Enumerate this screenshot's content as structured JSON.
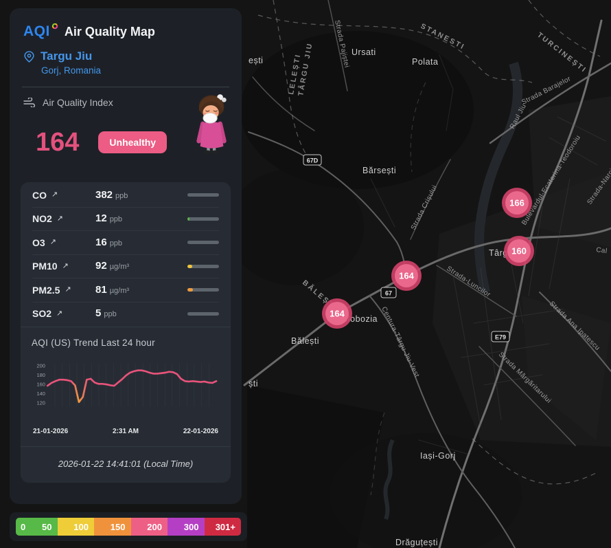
{
  "panel": {
    "logo_text": "AQI",
    "title": "Air Quality Map",
    "location": {
      "city": "Targu Jiu",
      "region": "Gorj, Romania"
    },
    "aqi_section_label": "Air Quality Index",
    "aqi_value": "164",
    "aqi_status": "Unhealthy",
    "trend_arrow": "↗",
    "pollutants": [
      {
        "name": "CO",
        "value": "382",
        "unit": "ppb",
        "fill_pct": 0,
        "fill_color": "#5d646c"
      },
      {
        "name": "NO2",
        "value": "12",
        "unit": "ppb",
        "fill_pct": 7,
        "fill_color": "#57b947"
      },
      {
        "name": "O3",
        "value": "16",
        "unit": "ppb",
        "fill_pct": 0,
        "fill_color": "#5d646c"
      },
      {
        "name": "PM10",
        "value": "92",
        "unit": "µg/m³",
        "fill_pct": 16,
        "fill_color": "#eec43d"
      },
      {
        "name": "PM2.5",
        "value": "81",
        "unit": "µg/m³",
        "fill_pct": 18,
        "fill_color": "#ef9a3d"
      },
      {
        "name": "SO2",
        "value": "5",
        "unit": "ppb",
        "fill_pct": 0,
        "fill_color": "#5d646c"
      }
    ],
    "timestamp": "2026-01-22 14:41:01 (Local Time)"
  },
  "chart_data": {
    "type": "line",
    "title": "AQI (US) Trend Last 24 hour",
    "x_labels": [
      "21-01-2026",
      "2:31 AM",
      "22-01-2026"
    ],
    "yticks": [
      200,
      180,
      160,
      140,
      120
    ],
    "ylim": [
      112,
      205
    ],
    "values": [
      157,
      163,
      167,
      170,
      170,
      169,
      167,
      158,
      122,
      133,
      170,
      172,
      164,
      161,
      161,
      160,
      158,
      157,
      164,
      171,
      179,
      185,
      188,
      190,
      190,
      188,
      185,
      183,
      183,
      184,
      185,
      187,
      186,
      182,
      172,
      167,
      166,
      167,
      166,
      165,
      166,
      164,
      163,
      167
    ],
    "line_color": "#e8537a",
    "dip_color": "#f09a3e",
    "grid": "vertical"
  },
  "legend": {
    "segments": [
      {
        "color": "#57b947",
        "left_label": "0",
        "label": "50"
      },
      {
        "color": "#eecd39",
        "label": "100"
      },
      {
        "color": "#f0923c",
        "label": "150"
      },
      {
        "color": "#ee5f86",
        "label": "200"
      },
      {
        "color": "#b43fc4",
        "label": "300"
      },
      {
        "color": "#ce2b42",
        "label": "301+"
      }
    ]
  },
  "map": {
    "markers": [
      {
        "value": "166"
      },
      {
        "value": "160"
      },
      {
        "value": "164"
      },
      {
        "value": "164"
      }
    ],
    "places": {
      "ursati": "Ursati",
      "polata": "Polata",
      "barsesti": "Bărsești",
      "slobozia": "Slobozia",
      "balesti": "Bălești",
      "targu_jiu": "Târgu Jiu",
      "iasi_gorj": "Iași-Gorj",
      "dragutesti": "Drăguțești",
      "edge_esti": "ești",
      "edge_sti": "ști"
    },
    "boundaries": {
      "turcinesti": "TURCINEȘTI",
      "stanesti": "STANESTI",
      "lelesti": "LELEȘTI",
      "targu_jiu_b": "TÂRGU JIU",
      "balesti_b": "BĂLEȘTI"
    },
    "streets": {
      "pajistei": "Strada Pajiștei",
      "barajelor": "Strada Barajelor",
      "raul_jiu": "Raul Jiu",
      "bulevardul": "Bulevardul-Ecaterina-Teodoroiu",
      "crisului": "Strada Crișului",
      "luncilor": "Strada-Luncilor",
      "centura": "Centura-Târgu-Jiu-Vest",
      "margaritarului": "Strada Mărgăritarului",
      "ana_ipatescu": "Strada Ana Ipatescu",
      "narciselor": "Strada-Narci",
      "calea": "Cal"
    },
    "shields": {
      "s67d": "67D",
      "s67": "67",
      "e79": "E79"
    }
  }
}
